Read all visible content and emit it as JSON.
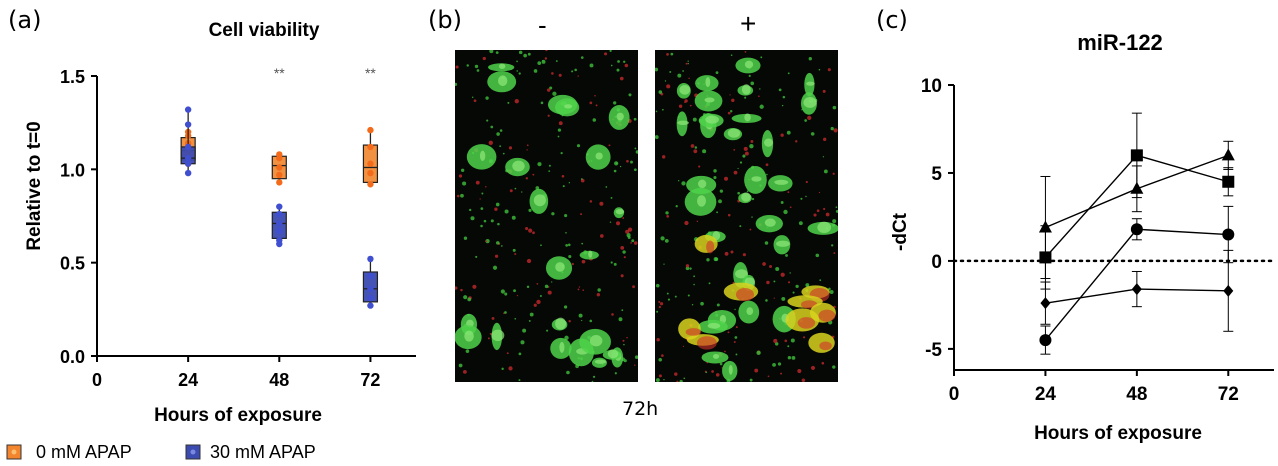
{
  "panel_labels": [
    "(a)",
    "(b)",
    "(c)"
  ],
  "panel_b": {
    "minus_label": "-",
    "plus_label": "+",
    "time_label": "72h"
  },
  "chart_data": [
    {
      "type": "box",
      "title": "Cell viability",
      "xlabel": "Hours of exposure",
      "ylabel": "Relative to t=0",
      "x_ticks": [
        "0",
        "24",
        "48",
        "72"
      ],
      "y_ticks": [
        "0.0",
        "0.5",
        "1.0",
        "1.5"
      ],
      "ylim": [
        0,
        1.5
      ],
      "xlim": [
        0,
        84
      ],
      "legend": [
        "0 mM APAP",
        "30 mM APAP"
      ],
      "legend_position": "bottom",
      "significance": [
        {
          "x": 48,
          "label": "**"
        },
        {
          "x": 72,
          "label": "**"
        }
      ],
      "colors": {
        "0 mM APAP": "#f2852e",
        "30 mM APAP": "#3b4bb0"
      },
      "series": [
        {
          "name": "0 mM APAP",
          "groups": [
            {
              "x": 24,
              "min": 1.02,
              "q1": 1.05,
              "median": 1.1,
              "q3": 1.17,
              "max": 1.2,
              "points": [
                1.2,
                1.18,
                1.14,
                1.1,
                1.06,
                1.03
              ]
            },
            {
              "x": 48,
              "min": 0.92,
              "q1": 0.95,
              "median": 1.02,
              "q3": 1.07,
              "max": 1.08,
              "points": [
                1.08,
                1.06,
                1.01,
                0.97,
                0.93
              ]
            },
            {
              "x": 72,
              "min": 0.91,
              "q1": 0.93,
              "median": 1.01,
              "q3": 1.13,
              "max": 1.21,
              "points": [
                1.21,
                1.12,
                1.03,
                0.98,
                0.92
              ]
            }
          ]
        },
        {
          "name": "30 mM APAP",
          "groups": [
            {
              "x": 24,
              "min": 0.98,
              "q1": 1.03,
              "median": 1.06,
              "q3": 1.12,
              "max": 1.32,
              "points": [
                1.32,
                1.24,
                1.12,
                1.06,
                1.03,
                0.98
              ]
            },
            {
              "x": 48,
              "min": 0.6,
              "q1": 0.63,
              "median": 0.71,
              "q3": 0.77,
              "max": 0.8,
              "points": [
                0.8,
                0.76,
                0.71,
                0.67,
                0.62,
                0.6
              ]
            },
            {
              "x": 72,
              "min": 0.27,
              "q1": 0.29,
              "median": 0.36,
              "q3": 0.45,
              "max": 0.52,
              "points": [
                0.52,
                0.43,
                0.36,
                0.31,
                0.27
              ]
            }
          ]
        }
      ]
    },
    {
      "type": "line",
      "title": "miR-122",
      "xlabel": "Hours of exposure",
      "ylabel": "-dCt",
      "x_ticks": [
        "0",
        "24",
        "48",
        "72"
      ],
      "y_ticks": [
        "-5",
        "0",
        "5",
        "10"
      ],
      "ylim": [
        -6.2,
        10
      ],
      "xlim": [
        0,
        84
      ],
      "reference_line": {
        "y": 0,
        "style": "dotted"
      },
      "x": [
        24,
        48,
        72
      ],
      "series": [
        {
          "marker": "square",
          "values": [
            0.2,
            6.0,
            4.5
          ],
          "errors": [
            1.8,
            2.4,
            0.8
          ]
        },
        {
          "marker": "triangle",
          "values": [
            1.9,
            4.1,
            6.0
          ],
          "errors": [
            2.9,
            1.3,
            0.8
          ]
        },
        {
          "marker": "circle",
          "values": [
            -4.5,
            1.8,
            1.5
          ],
          "errors": [
            0.8,
            0.6,
            1.6
          ]
        },
        {
          "marker": "diamond",
          "values": [
            -2.4,
            -1.6,
            -1.7
          ],
          "errors": [
            1.2,
            1.0,
            2.3
          ]
        }
      ]
    }
  ]
}
